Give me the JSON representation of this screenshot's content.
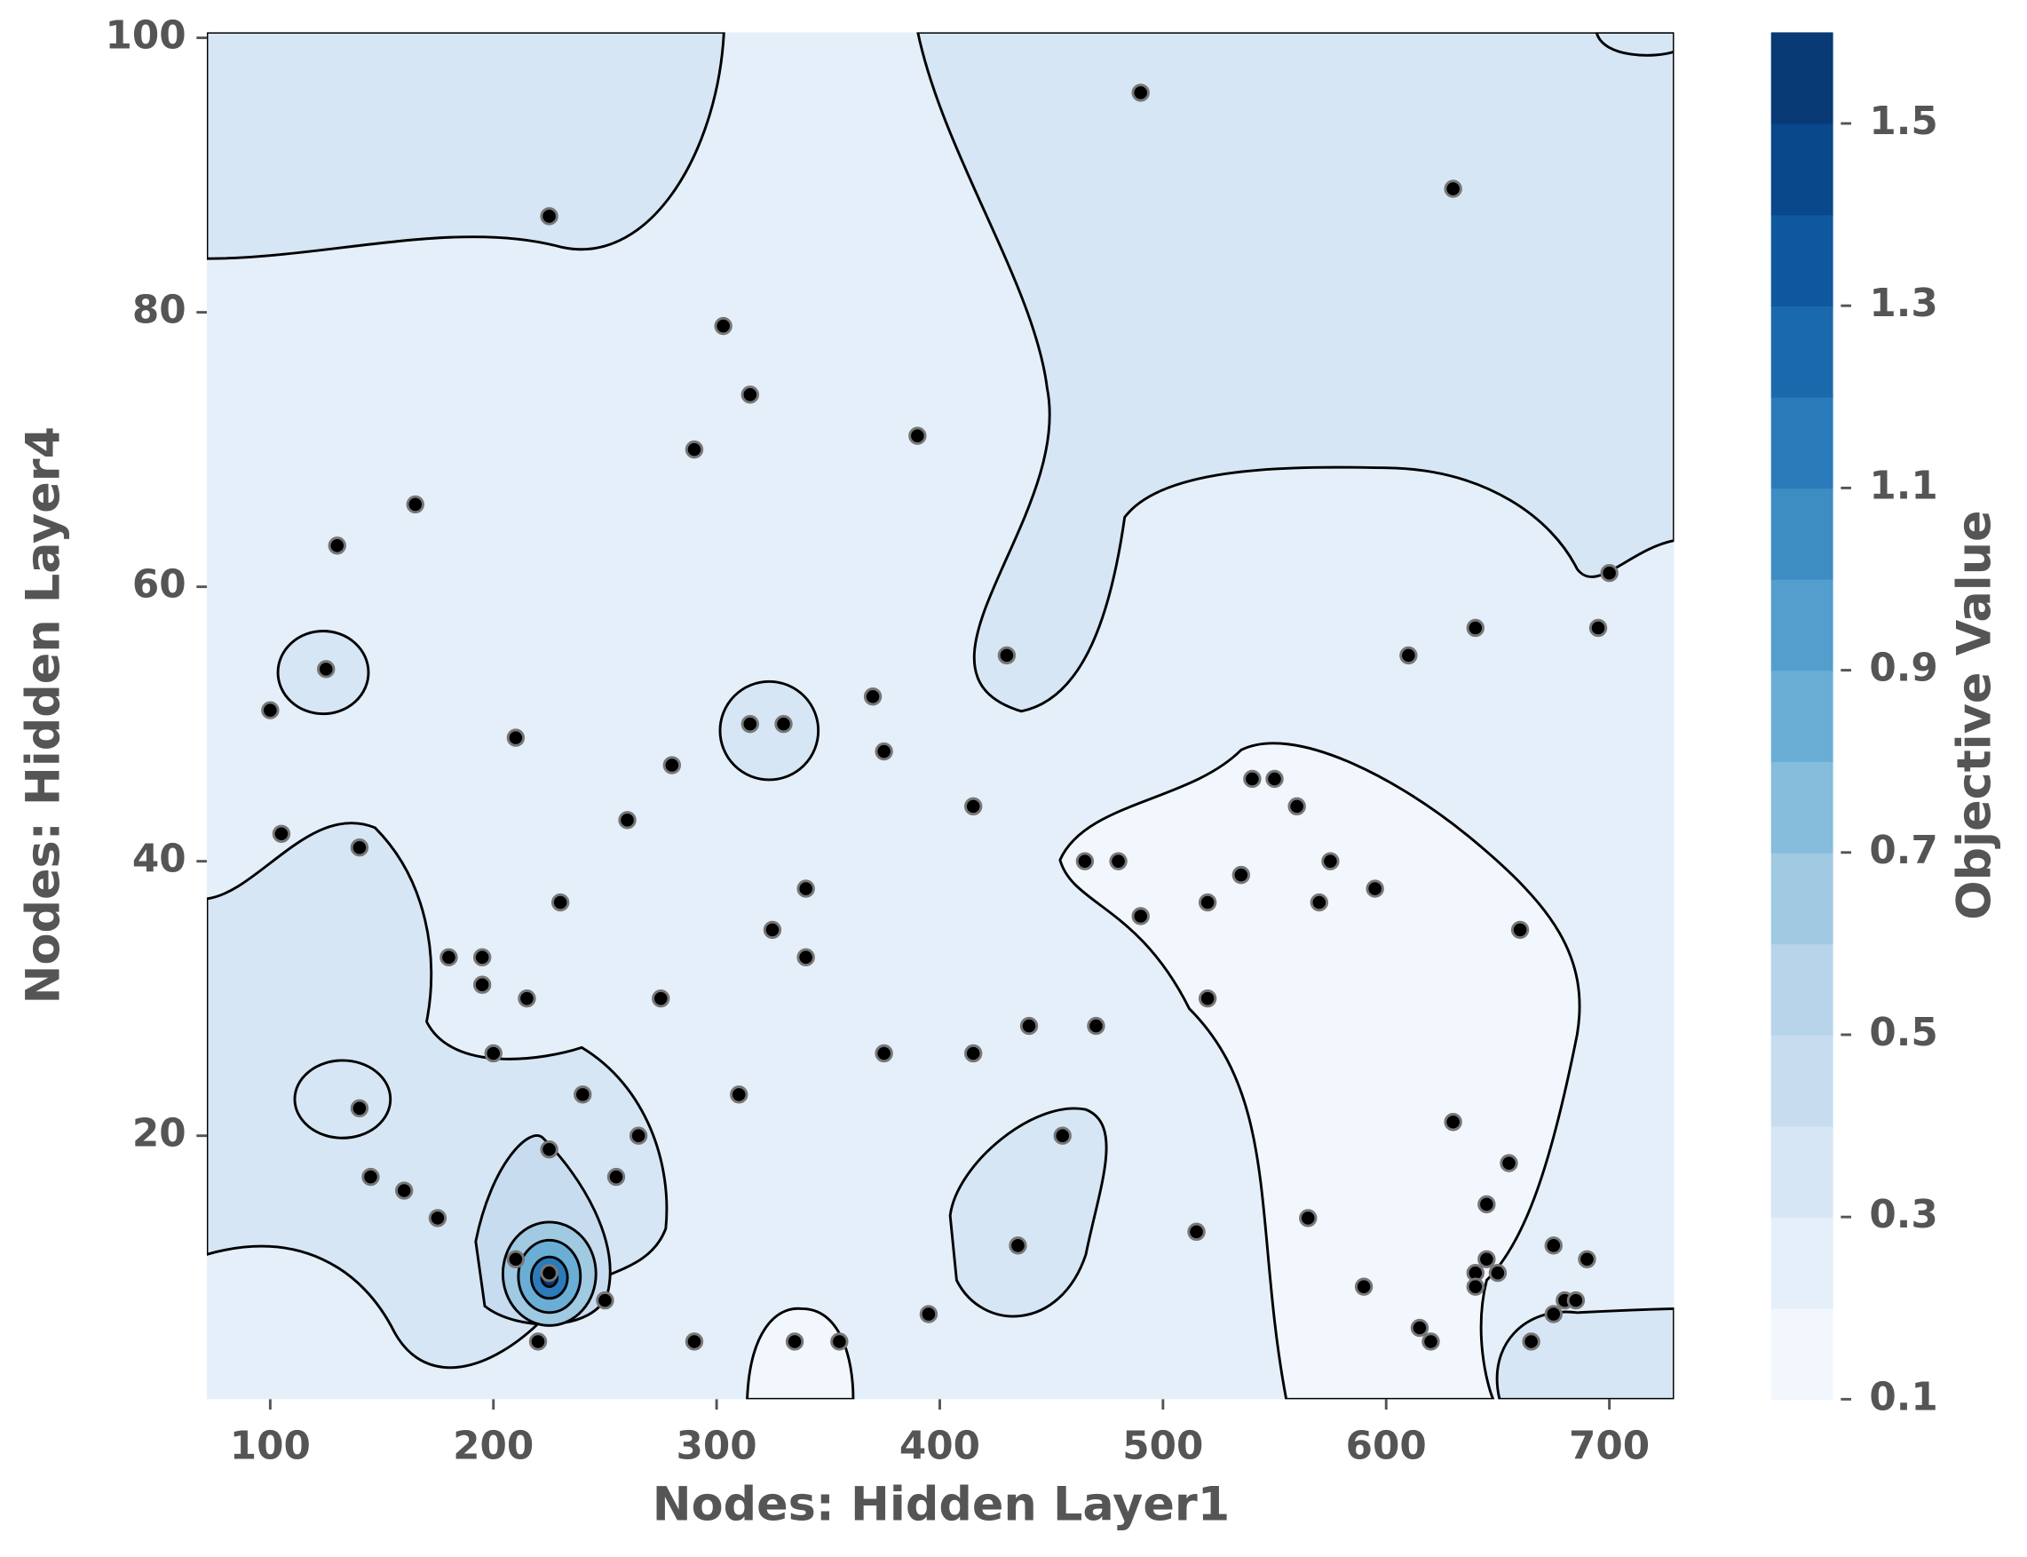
{
  "chart_data": {
    "type": "contour",
    "xlabel": "Nodes: Hidden Layer1",
    "ylabel": "Nodes: Hidden Layer4",
    "colorbar_label": "Objective Value",
    "xlim": [
      71.6,
      729
    ],
    "ylim": [
      0.8,
      100.4
    ],
    "xticks": [
      100,
      200,
      300,
      400,
      500,
      600,
      700
    ],
    "yticks": [
      20,
      40,
      60,
      80,
      100
    ],
    "clim": [
      0.1,
      1.6
    ],
    "cticks": [
      0.1,
      0.3,
      0.5,
      0.7,
      0.9,
      1.1,
      1.3,
      1.5
    ],
    "levels_colors": [
      "#f2f7fd",
      "#e4eff9",
      "#d6e6f4",
      "#c8dcf0",
      "#b7d4ea",
      "#a0c9e2",
      "#86bcdc",
      "#6aaed6",
      "#539ecd",
      "#3d8dc3",
      "#2b7bba",
      "#1b69ad",
      "#0f589e",
      "#09488a",
      "#083a76"
    ],
    "point_color": "#000000",
    "x": [
      490,
      225,
      630,
      303,
      315,
      290,
      390,
      165,
      130,
      700,
      430,
      610,
      640,
      695,
      125,
      100,
      210,
      315,
      330,
      370,
      375,
      280,
      540,
      550,
      415,
      560,
      260,
      105,
      140,
      465,
      480,
      575,
      535,
      595,
      340,
      230,
      520,
      570,
      490,
      325,
      660,
      180,
      195,
      340,
      195,
      215,
      275,
      520,
      440,
      470,
      200,
      375,
      415,
      240,
      310,
      140,
      630,
      265,
      455,
      225,
      655,
      145,
      255,
      160,
      645,
      175,
      565,
      515,
      435,
      675,
      210,
      645,
      690,
      640,
      650,
      225,
      640,
      590,
      250,
      680,
      685,
      395,
      675,
      615,
      220,
      290,
      335,
      355,
      620,
      665
    ],
    "y": [
      96,
      87,
      89,
      79,
      74,
      70,
      71,
      66,
      63,
      61,
      55,
      55,
      57,
      57,
      54,
      51,
      49,
      50,
      50,
      52,
      48,
      47,
      46,
      46,
      44,
      44,
      43,
      42,
      41,
      40,
      40,
      40,
      39,
      38,
      38,
      37,
      37,
      37,
      36,
      35,
      35,
      33,
      33,
      33,
      31,
      30,
      30,
      30,
      28,
      28,
      26,
      26,
      26,
      23,
      23,
      22,
      21,
      20,
      20,
      19,
      18,
      17,
      17,
      16,
      15,
      14,
      14,
      13,
      12,
      12,
      11,
      11,
      11,
      10,
      10,
      10,
      9,
      9,
      8,
      8,
      8,
      7,
      7,
      6,
      5,
      5,
      5,
      5,
      5,
      5
    ]
  }
}
